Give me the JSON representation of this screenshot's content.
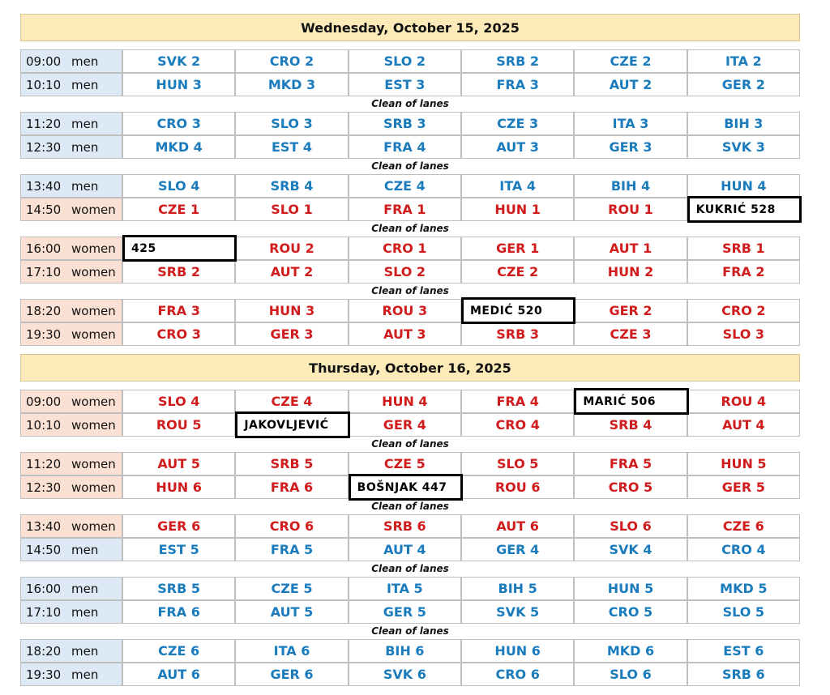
{
  "days": [
    {
      "title": "Wednesday, October 15, 2025",
      "blocks": [
        {
          "rows": [
            {
              "time": "09:00",
              "gender": "men",
              "color": "#1a7bbd",
              "bg": "#dde9f5",
              "cells": [
                "SVK 2",
                "CRO 2",
                "SLO 2",
                "SRB 2",
                "CZE 2",
                "ITA 2"
              ]
            },
            {
              "time": "10:10",
              "gender": "men",
              "color": "#1a7bbd",
              "bg": "#dde9f5",
              "cells": [
                "HUN 3",
                "MKD 3",
                "EST 3",
                "FRA 3",
                "AUT 2",
                "GER 2"
              ]
            }
          ],
          "after": "Clean of lanes"
        },
        {
          "rows": [
            {
              "time": "11:20",
              "gender": "men",
              "color": "#1a7bbd",
              "bg": "#dde9f5",
              "cells": [
                "CRO 3",
                "SLO 3",
                "SRB 3",
                "CZE 3",
                "ITA 3",
                "BIH 3"
              ]
            },
            {
              "time": "12:30",
              "gender": "men",
              "color": "#1a7bbd",
              "bg": "#dde9f5",
              "cells": [
                "MKD 4",
                "EST 4",
                "FRA 4",
                "AUT 3",
                "GER 3",
                "SVK 3"
              ]
            }
          ],
          "after": "Clean of lanes"
        },
        {
          "rows": [
            {
              "time": "13:40",
              "gender": "men",
              "color": "#1a7bbd",
              "bg": "#dde9f5",
              "cells": [
                "SLO 4",
                "SRB 4",
                "CZE 4",
                "ITA 4",
                "BIH 4",
                "HUN 4"
              ]
            },
            {
              "time": "14:50",
              "gender": "women",
              "color": "#d01c1c",
              "bg": "#fbe1d3",
              "cells": [
                "CZE 1",
                "SLO 1",
                "FRA 1",
                "HUN 1",
                "ROU 1",
                "KUKRIĆ 528"
              ],
              "boxed": [
                5
              ]
            }
          ],
          "after": "Clean of lanes"
        },
        {
          "rows": [
            {
              "time": "16:00",
              "gender": "women",
              "color": "#d01c1c",
              "bg": "#fbe1d3",
              "cells": [
                "425",
                "ROU 2",
                "CRO 1",
                "GER 1",
                "AUT 1",
                "SRB 1"
              ],
              "boxed": [
                0
              ]
            },
            {
              "time": "17:10",
              "gender": "women",
              "color": "#d01c1c",
              "bg": "#fbe1d3",
              "cells": [
                "SRB 2",
                "AUT 2",
                "SLO 2",
                "CZE 2",
                "HUN 2",
                "FRA 2"
              ]
            }
          ],
          "after": "Clean of lanes"
        },
        {
          "rows": [
            {
              "time": "18:20",
              "gender": "women",
              "color": "#d01c1c",
              "bg": "#fbe1d3",
              "cells": [
                "FRA 3",
                "HUN 3",
                "ROU 3",
                "MEDIĆ 520",
                "GER 2",
                "CRO 2"
              ],
              "boxed": [
                3
              ]
            },
            {
              "time": "19:30",
              "gender": "women",
              "color": "#d01c1c",
              "bg": "#fbe1d3",
              "cells": [
                "CRO 3",
                "GER 3",
                "AUT 3",
                "SRB 3",
                "CZE 3",
                "SLO 3"
              ]
            }
          ]
        }
      ]
    },
    {
      "title": "Thursday, October 16, 2025",
      "blocks": [
        {
          "rows": [
            {
              "time": "09:00",
              "gender": "women",
              "color": "#d01c1c",
              "bg": "#fbe1d3",
              "cells": [
                "SLO 4",
                "CZE 4",
                "HUN 4",
                "FRA 4",
                "MARIĆ 506",
                "ROU 4"
              ],
              "boxed": [
                4
              ]
            },
            {
              "time": "10:10",
              "gender": "women",
              "color": "#d01c1c",
              "bg": "#fbe1d3",
              "cells": [
                "ROU 5",
                "JAKOVLJEVIĆ",
                "GER 4",
                "CRO 4",
                "SRB 4",
                "AUT 4"
              ],
              "boxed": [
                1
              ]
            }
          ],
          "after": "Clean of lanes"
        },
        {
          "rows": [
            {
              "time": "11:20",
              "gender": "women",
              "color": "#d01c1c",
              "bg": "#fbe1d3",
              "cells": [
                "AUT 5",
                "SRB 5",
                "CZE 5",
                "SLO 5",
                "FRA 5",
                "HUN 5"
              ]
            },
            {
              "time": "12:30",
              "gender": "women",
              "color": "#d01c1c",
              "bg": "#fbe1d3",
              "cells": [
                "HUN 6",
                "FRA 6",
                "BOŠNJAK 447",
                "ROU 6",
                "CRO 5",
                "GER 5"
              ],
              "boxed": [
                2
              ]
            }
          ],
          "after": "Clean of lanes"
        },
        {
          "rows": [
            {
              "time": "13:40",
              "gender": "women",
              "color": "#d01c1c",
              "bg": "#fbe1d3",
              "cells": [
                "GER 6",
                "CRO 6",
                "SRB 6",
                "AUT 6",
                "SLO 6",
                "CZE 6"
              ]
            },
            {
              "time": "14:50",
              "gender": "men",
              "color": "#1a7bbd",
              "bg": "#dde9f5",
              "cells": [
                "EST 5",
                "FRA 5",
                "AUT 4",
                "GER 4",
                "SVK 4",
                "CRO 4"
              ]
            }
          ],
          "after": "Clean of lanes"
        },
        {
          "rows": [
            {
              "time": "16:00",
              "gender": "men",
              "color": "#1a7bbd",
              "bg": "#dde9f5",
              "cells": [
                "SRB 5",
                "CZE 5",
                "ITA 5",
                "BIH 5",
                "HUN 5",
                "MKD 5"
              ]
            },
            {
              "time": "17:10",
              "gender": "men",
              "color": "#1a7bbd",
              "bg": "#dde9f5",
              "cells": [
                "FRA 6",
                "AUT 5",
                "GER 5",
                "SVK 5",
                "CRO 5",
                "SLO 5"
              ]
            }
          ],
          "after": "Clean of lanes"
        },
        {
          "rows": [
            {
              "time": "18:20",
              "gender": "men",
              "color": "#1a7bbd",
              "bg": "#dde9f5",
              "cells": [
                "CZE 6",
                "ITA 6",
                "BIH 6",
                "HUN 6",
                "MKD 6",
                "EST 6"
              ]
            },
            {
              "time": "19:30",
              "gender": "men",
              "color": "#1a7bbd",
              "bg": "#dde9f5",
              "cells": [
                "AUT 6",
                "GER 6",
                "SVK 6",
                "CRO 6",
                "SLO 6",
                "SRB 6"
              ]
            }
          ]
        }
      ]
    }
  ]
}
